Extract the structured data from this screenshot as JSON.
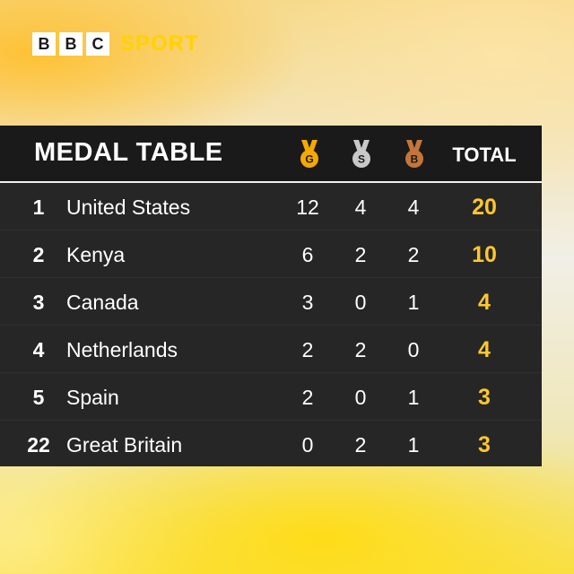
{
  "brand": {
    "letters": [
      "B",
      "B",
      "C"
    ],
    "sport": "SPORT",
    "accent": "#ffd200"
  },
  "table": {
    "title": "MEDAL TABLE",
    "medals": [
      {
        "name": "gold-medal-icon",
        "letter": "G",
        "color": "#f5a800"
      },
      {
        "name": "silver-medal-icon",
        "letter": "S",
        "color": "#c8c8c8"
      },
      {
        "name": "bronze-medal-icon",
        "letter": "B",
        "color": "#c4763a"
      }
    ],
    "total_label": "TOTAL",
    "total_color": "#ffc72c",
    "rows": [
      {
        "rank": "1",
        "country": "United States",
        "gold": "12",
        "silver": "4",
        "bronze": "4",
        "total": "20"
      },
      {
        "rank": "2",
        "country": "Kenya",
        "gold": "6",
        "silver": "2",
        "bronze": "2",
        "total": "10"
      },
      {
        "rank": "3",
        "country": "Canada",
        "gold": "3",
        "silver": "0",
        "bronze": "1",
        "total": "4"
      },
      {
        "rank": "4",
        "country": "Netherlands",
        "gold": "2",
        "silver": "2",
        "bronze": "0",
        "total": "4"
      },
      {
        "rank": "5",
        "country": "Spain",
        "gold": "2",
        "silver": "0",
        "bronze": "1",
        "total": "3"
      },
      {
        "rank": "22",
        "country": "Great Britain",
        "gold": "0",
        "silver": "2",
        "bronze": "1",
        "total": "3"
      }
    ]
  }
}
